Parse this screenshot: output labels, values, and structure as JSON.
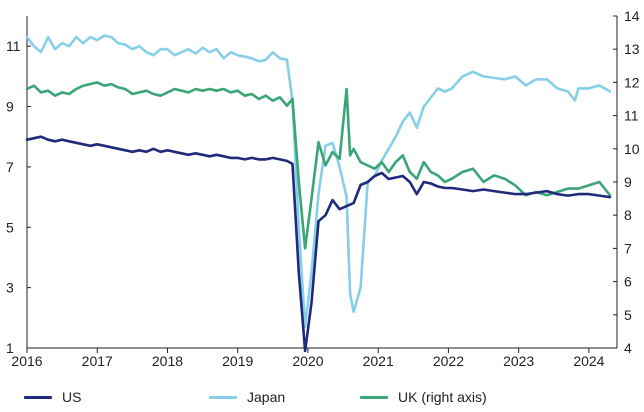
{
  "chart_data": {
    "type": "line",
    "title": "",
    "xlabel": "",
    "ylabel": "",
    "y2label": "",
    "xlim": [
      2016.0,
      2024.4
    ],
    "ylim": [
      1,
      12
    ],
    "y2lim": [
      4,
      14
    ],
    "x_ticks": [
      2016,
      2017,
      2018,
      2019,
      2020,
      2021,
      2022,
      2023,
      2024
    ],
    "x_tick_labels": [
      "2016",
      "2017",
      "2018",
      "2019",
      "2020",
      "2021",
      "2022",
      "2023",
      "2024"
    ],
    "y_ticks": [
      1,
      3,
      5,
      7,
      9,
      11
    ],
    "y_tick_labels": [
      "1",
      "3",
      "5",
      "7",
      "9",
      "11"
    ],
    "y2_ticks": [
      4,
      5,
      6,
      7,
      8,
      9,
      10,
      11,
      12,
      13,
      14
    ],
    "y2_tick_labels": [
      "4",
      "5",
      "6",
      "7",
      "8",
      "9",
      "10",
      "11",
      "12",
      "13",
      "14"
    ],
    "grid": false,
    "legend_position": "bottom",
    "series": [
      {
        "name": "US",
        "axis": "left",
        "color": "#1f2a7a",
        "points": [
          [
            2016.0,
            7.9
          ],
          [
            2016.1,
            7.95
          ],
          [
            2016.2,
            8.0
          ],
          [
            2016.3,
            7.9
          ],
          [
            2016.4,
            7.85
          ],
          [
            2016.5,
            7.9
          ],
          [
            2016.6,
            7.85
          ],
          [
            2016.7,
            7.8
          ],
          [
            2016.8,
            7.75
          ],
          [
            2016.9,
            7.7
          ],
          [
            2017.0,
            7.75
          ],
          [
            2017.1,
            7.7
          ],
          [
            2017.2,
            7.65
          ],
          [
            2017.3,
            7.6
          ],
          [
            2017.4,
            7.55
          ],
          [
            2017.5,
            7.5
          ],
          [
            2017.6,
            7.55
          ],
          [
            2017.7,
            7.5
          ],
          [
            2017.8,
            7.6
          ],
          [
            2017.9,
            7.5
          ],
          [
            2018.0,
            7.55
          ],
          [
            2018.1,
            7.5
          ],
          [
            2018.2,
            7.45
          ],
          [
            2018.3,
            7.4
          ],
          [
            2018.4,
            7.45
          ],
          [
            2018.5,
            7.4
          ],
          [
            2018.6,
            7.35
          ],
          [
            2018.7,
            7.4
          ],
          [
            2018.8,
            7.35
          ],
          [
            2018.9,
            7.3
          ],
          [
            2019.0,
            7.3
          ],
          [
            2019.1,
            7.25
          ],
          [
            2019.2,
            7.3
          ],
          [
            2019.3,
            7.25
          ],
          [
            2019.4,
            7.25
          ],
          [
            2019.5,
            7.3
          ],
          [
            2019.6,
            7.25
          ],
          [
            2019.7,
            7.2
          ],
          [
            2019.78,
            7.1
          ],
          [
            2019.87,
            3.5
          ],
          [
            2019.96,
            0.9
          ],
          [
            2020.05,
            2.5
          ],
          [
            2020.15,
            5.2
          ],
          [
            2020.25,
            5.4
          ],
          [
            2020.35,
            5.9
          ],
          [
            2020.45,
            5.6
          ],
          [
            2020.55,
            5.7
          ],
          [
            2020.65,
            5.8
          ],
          [
            2020.75,
            6.4
          ],
          [
            2020.85,
            6.5
          ],
          [
            2020.95,
            6.7
          ],
          [
            2021.05,
            6.8
          ],
          [
            2021.15,
            6.6
          ],
          [
            2021.25,
            6.65
          ],
          [
            2021.35,
            6.7
          ],
          [
            2021.45,
            6.5
          ],
          [
            2021.55,
            6.1
          ],
          [
            2021.65,
            6.5
          ],
          [
            2021.75,
            6.45
          ],
          [
            2021.85,
            6.35
          ],
          [
            2021.95,
            6.3
          ],
          [
            2022.05,
            6.3
          ],
          [
            2022.2,
            6.25
          ],
          [
            2022.35,
            6.2
          ],
          [
            2022.5,
            6.25
          ],
          [
            2022.65,
            6.2
          ],
          [
            2022.8,
            6.15
          ],
          [
            2022.95,
            6.1
          ],
          [
            2023.1,
            6.1
          ],
          [
            2023.25,
            6.15
          ],
          [
            2023.4,
            6.2
          ],
          [
            2023.55,
            6.1
          ],
          [
            2023.7,
            6.05
          ],
          [
            2023.85,
            6.1
          ],
          [
            2024.0,
            6.1
          ],
          [
            2024.15,
            6.05
          ],
          [
            2024.3,
            6.0
          ]
        ]
      },
      {
        "name": "Japan",
        "axis": "left",
        "color": "#86cfe8",
        "points": [
          [
            2016.0,
            11.3
          ],
          [
            2016.1,
            11.0
          ],
          [
            2016.2,
            10.8
          ],
          [
            2016.3,
            11.3
          ],
          [
            2016.4,
            10.9
          ],
          [
            2016.5,
            11.1
          ],
          [
            2016.6,
            11.0
          ],
          [
            2016.7,
            11.3
          ],
          [
            2016.8,
            11.1
          ],
          [
            2016.9,
            11.3
          ],
          [
            2017.0,
            11.2
          ],
          [
            2017.1,
            11.35
          ],
          [
            2017.2,
            11.3
          ],
          [
            2017.3,
            11.1
          ],
          [
            2017.4,
            11.05
          ],
          [
            2017.5,
            10.9
          ],
          [
            2017.6,
            11.0
          ],
          [
            2017.7,
            10.8
          ],
          [
            2017.8,
            10.7
          ],
          [
            2017.9,
            10.9
          ],
          [
            2018.0,
            10.9
          ],
          [
            2018.1,
            10.7
          ],
          [
            2018.2,
            10.8
          ],
          [
            2018.3,
            10.9
          ],
          [
            2018.4,
            10.75
          ],
          [
            2018.5,
            10.95
          ],
          [
            2018.6,
            10.8
          ],
          [
            2018.7,
            10.9
          ],
          [
            2018.8,
            10.6
          ],
          [
            2018.9,
            10.8
          ],
          [
            2019.0,
            10.7
          ],
          [
            2019.1,
            10.65
          ],
          [
            2019.2,
            10.6
          ],
          [
            2019.3,
            10.5
          ],
          [
            2019.4,
            10.55
          ],
          [
            2019.5,
            10.8
          ],
          [
            2019.6,
            10.6
          ],
          [
            2019.7,
            10.55
          ],
          [
            2019.78,
            9.2
          ],
          [
            2019.87,
            5.0
          ],
          [
            2019.96,
            1.7
          ],
          [
            2020.05,
            3.5
          ],
          [
            2020.15,
            6.1
          ],
          [
            2020.25,
            7.7
          ],
          [
            2020.35,
            7.8
          ],
          [
            2020.45,
            7.0
          ],
          [
            2020.55,
            6.0
          ],
          [
            2020.6,
            2.8
          ],
          [
            2020.65,
            2.2
          ],
          [
            2020.75,
            3.0
          ],
          [
            2020.85,
            6.5
          ],
          [
            2020.95,
            6.7
          ],
          [
            2021.05,
            7.2
          ],
          [
            2021.15,
            7.6
          ],
          [
            2021.25,
            8.0
          ],
          [
            2021.35,
            8.5
          ],
          [
            2021.45,
            8.8
          ],
          [
            2021.55,
            8.3
          ],
          [
            2021.65,
            9.0
          ],
          [
            2021.75,
            9.3
          ],
          [
            2021.85,
            9.6
          ],
          [
            2021.95,
            9.5
          ],
          [
            2022.05,
            9.6
          ],
          [
            2022.2,
            10.0
          ],
          [
            2022.35,
            10.15
          ],
          [
            2022.5,
            10.0
          ],
          [
            2022.65,
            9.95
          ],
          [
            2022.8,
            9.9
          ],
          [
            2022.95,
            10.0
          ],
          [
            2023.1,
            9.7
          ],
          [
            2023.25,
            9.9
          ],
          [
            2023.4,
            9.9
          ],
          [
            2023.55,
            9.6
          ],
          [
            2023.7,
            9.5
          ],
          [
            2023.8,
            9.2
          ],
          [
            2023.85,
            9.6
          ],
          [
            2024.0,
            9.6
          ],
          [
            2024.15,
            9.7
          ],
          [
            2024.3,
            9.5
          ]
        ]
      },
      {
        "name": "UK (right axis)",
        "axis": "right",
        "color": "#3aa576",
        "points": [
          [
            2016.0,
            11.8
          ],
          [
            2016.1,
            11.9
          ],
          [
            2016.2,
            11.7
          ],
          [
            2016.3,
            11.75
          ],
          [
            2016.4,
            11.6
          ],
          [
            2016.5,
            11.7
          ],
          [
            2016.6,
            11.65
          ],
          [
            2016.7,
            11.8
          ],
          [
            2016.8,
            11.9
          ],
          [
            2016.9,
            11.95
          ],
          [
            2017.0,
            12.0
          ],
          [
            2017.1,
            11.9
          ],
          [
            2017.2,
            11.95
          ],
          [
            2017.3,
            11.85
          ],
          [
            2017.4,
            11.8
          ],
          [
            2017.5,
            11.65
          ],
          [
            2017.6,
            11.7
          ],
          [
            2017.7,
            11.75
          ],
          [
            2017.8,
            11.65
          ],
          [
            2017.9,
            11.6
          ],
          [
            2018.0,
            11.7
          ],
          [
            2018.1,
            11.8
          ],
          [
            2018.2,
            11.75
          ],
          [
            2018.3,
            11.7
          ],
          [
            2018.4,
            11.8
          ],
          [
            2018.5,
            11.75
          ],
          [
            2018.6,
            11.8
          ],
          [
            2018.7,
            11.75
          ],
          [
            2018.8,
            11.8
          ],
          [
            2018.9,
            11.7
          ],
          [
            2019.0,
            11.75
          ],
          [
            2019.1,
            11.6
          ],
          [
            2019.2,
            11.65
          ],
          [
            2019.3,
            11.5
          ],
          [
            2019.4,
            11.6
          ],
          [
            2019.5,
            11.45
          ],
          [
            2019.6,
            11.55
          ],
          [
            2019.7,
            11.3
          ],
          [
            2019.78,
            11.5
          ],
          [
            2019.87,
            9.0
          ],
          [
            2019.96,
            7.0
          ],
          [
            2020.05,
            8.5
          ],
          [
            2020.15,
            10.2
          ],
          [
            2020.25,
            9.5
          ],
          [
            2020.35,
            9.9
          ],
          [
            2020.45,
            9.7
          ],
          [
            2020.55,
            11.8
          ],
          [
            2020.6,
            9.8
          ],
          [
            2020.65,
            10.0
          ],
          [
            2020.75,
            9.6
          ],
          [
            2020.85,
            9.5
          ],
          [
            2020.95,
            9.4
          ],
          [
            2021.05,
            9.6
          ],
          [
            2021.15,
            9.3
          ],
          [
            2021.25,
            9.6
          ],
          [
            2021.35,
            9.8
          ],
          [
            2021.45,
            9.3
          ],
          [
            2021.55,
            9.1
          ],
          [
            2021.65,
            9.6
          ],
          [
            2021.75,
            9.3
          ],
          [
            2021.85,
            9.2
          ],
          [
            2021.95,
            9.0
          ],
          [
            2022.05,
            9.1
          ],
          [
            2022.2,
            9.3
          ],
          [
            2022.35,
            9.4
          ],
          [
            2022.5,
            9.0
          ],
          [
            2022.65,
            9.2
          ],
          [
            2022.8,
            9.1
          ],
          [
            2022.95,
            8.9
          ],
          [
            2023.1,
            8.6
          ],
          [
            2023.25,
            8.7
          ],
          [
            2023.4,
            8.6
          ],
          [
            2023.55,
            8.7
          ],
          [
            2023.7,
            8.8
          ],
          [
            2023.85,
            8.8
          ],
          [
            2024.0,
            8.9
          ],
          [
            2024.15,
            9.0
          ],
          [
            2024.3,
            8.6
          ]
        ]
      }
    ]
  }
}
